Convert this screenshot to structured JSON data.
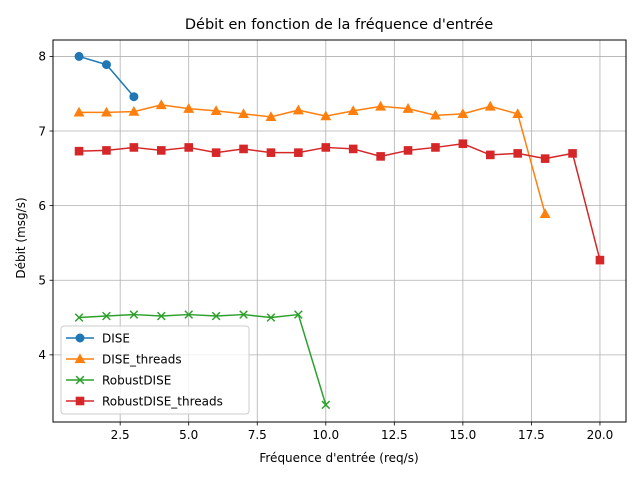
{
  "chart_data": {
    "type": "line",
    "title": "Débit en fonction de la fréquence d'entrée",
    "xlabel": "Fréquence d'entrée (req/s)",
    "ylabel": "Débit (msg/s)",
    "xlim": [
      0.05,
      20.95
    ],
    "ylim": [
      3.1,
      8.22
    ],
    "xticks": [
      2.5,
      5.0,
      7.5,
      10.0,
      12.5,
      15.0,
      17.5,
      20.0
    ],
    "xtick_labels": [
      "2.5",
      "5.0",
      "7.5",
      "10.0",
      "12.5",
      "15.0",
      "17.5",
      "20.0"
    ],
    "yticks": [
      4,
      5,
      6,
      7,
      8
    ],
    "ytick_labels": [
      "4",
      "5",
      "6",
      "7",
      "8"
    ],
    "grid": true,
    "legend_position": "bottom-left",
    "series": [
      {
        "name": "DISE",
        "color": "#1f77b4",
        "marker": "circle",
        "x": [
          1,
          2,
          3
        ],
        "y": [
          8.0,
          7.89,
          7.46
        ]
      },
      {
        "name": "DISE_threads",
        "color": "#ff7f0e",
        "marker": "triangle",
        "x": [
          1,
          2,
          3,
          4,
          5,
          6,
          7,
          8,
          9,
          10,
          11,
          12,
          13,
          14,
          15,
          16,
          17,
          18
        ],
        "y": [
          7.25,
          7.25,
          7.26,
          7.35,
          7.3,
          7.27,
          7.23,
          7.19,
          7.28,
          7.2,
          7.27,
          7.33,
          7.3,
          7.21,
          7.23,
          7.33,
          7.23,
          5.89
        ]
      },
      {
        "name": "RobustDISE",
        "color": "#2ca02c",
        "marker": "x",
        "x": [
          1,
          2,
          3,
          4,
          5,
          6,
          7,
          8,
          9,
          10
        ],
        "y": [
          4.5,
          4.52,
          4.54,
          4.52,
          4.54,
          4.52,
          4.54,
          4.5,
          4.54,
          3.33
        ]
      },
      {
        "name": "RobustDISE_threads",
        "color": "#d62728",
        "marker": "square",
        "x": [
          1,
          2,
          3,
          4,
          5,
          6,
          7,
          8,
          9,
          10,
          11,
          12,
          13,
          14,
          15,
          16,
          17,
          18,
          19,
          20
        ],
        "y": [
          6.73,
          6.74,
          6.78,
          6.74,
          6.78,
          6.71,
          6.76,
          6.71,
          6.71,
          6.78,
          6.76,
          6.66,
          6.74,
          6.78,
          6.83,
          6.68,
          6.7,
          6.63,
          6.7,
          5.27
        ]
      }
    ]
  }
}
